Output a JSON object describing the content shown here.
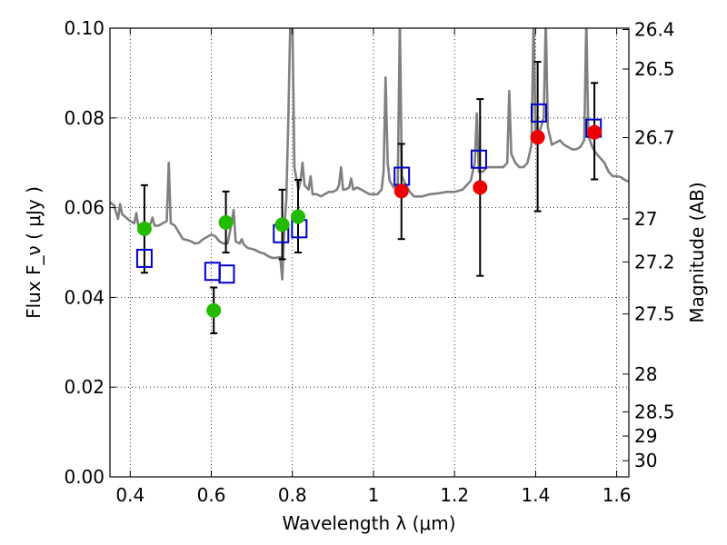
{
  "chart_data": {
    "type": "scatter",
    "xlabel": "Wavelength  λ (μm)",
    "ylabel": "Flux  F_ν  ( μJy )",
    "y2label": "Magnitude (AB)",
    "xlim": [
      0.35,
      1.63
    ],
    "ylim": [
      0.0,
      0.1
    ],
    "grid": true,
    "x_ticks": [
      0.4,
      0.6,
      0.8,
      1.0,
      1.2,
      1.4,
      1.6
    ],
    "x_tick_labels": [
      "0.4",
      "0.6",
      "0.8",
      "1",
      "1.2",
      "1.4",
      "1.6"
    ],
    "y_ticks": [
      0.0,
      0.02,
      0.04,
      0.06,
      0.08,
      0.1
    ],
    "y_tick_labels": [
      "0.00",
      "0.02",
      "0.04",
      "0.06",
      "0.08",
      "0.10"
    ],
    "right_axis_ticks": [
      {
        "flux": 0.0997,
        "label": "26.4"
      },
      {
        "flux": 0.0909,
        "label": "26.5"
      },
      {
        "flux": 0.0756,
        "label": "26.7"
      },
      {
        "flux": 0.0575,
        "label": "27"
      },
      {
        "flux": 0.0479,
        "label": "27.2"
      },
      {
        "flux": 0.0363,
        "label": "27.5"
      },
      {
        "flux": 0.0229,
        "label": "28"
      },
      {
        "flux": 0.0145,
        "label": "28.5"
      },
      {
        "flux": 0.0091,
        "label": "29"
      },
      {
        "flux": 0.0036,
        "label": "30"
      }
    ],
    "series": [
      {
        "kind": "model-spectrum",
        "color": "#808080",
        "points": [
          [
            0.35,
            0.0612
          ],
          [
            0.36,
            0.0605
          ],
          [
            0.37,
            0.0575
          ],
          [
            0.375,
            0.0608
          ],
          [
            0.38,
            0.0585
          ],
          [
            0.39,
            0.0578
          ],
          [
            0.4,
            0.057
          ],
          [
            0.41,
            0.0565
          ],
          [
            0.415,
            0.0588
          ],
          [
            0.42,
            0.056
          ],
          [
            0.43,
            0.0558
          ],
          [
            0.44,
            0.0562
          ],
          [
            0.45,
            0.0564
          ],
          [
            0.455,
            0.0578
          ],
          [
            0.46,
            0.056
          ],
          [
            0.47,
            0.056
          ],
          [
            0.48,
            0.0565
          ],
          [
            0.485,
            0.0568
          ],
          [
            0.49,
            0.057
          ],
          [
            0.495,
            0.07
          ],
          [
            0.5,
            0.0565
          ],
          [
            0.51,
            0.056
          ],
          [
            0.52,
            0.0545
          ],
          [
            0.53,
            0.053
          ],
          [
            0.54,
            0.0528
          ],
          [
            0.55,
            0.0525
          ],
          [
            0.56,
            0.052
          ],
          [
            0.57,
            0.0522
          ],
          [
            0.58,
            0.053
          ],
          [
            0.59,
            0.0535
          ],
          [
            0.6,
            0.054
          ],
          [
            0.61,
            0.0536
          ],
          [
            0.62,
            0.0525
          ],
          [
            0.63,
            0.052
          ],
          [
            0.64,
            0.052
          ],
          [
            0.65,
            0.0565
          ],
          [
            0.655,
            0.0595
          ],
          [
            0.66,
            0.0525
          ],
          [
            0.67,
            0.052
          ],
          [
            0.675,
            0.053
          ],
          [
            0.68,
            0.0518
          ],
          [
            0.69,
            0.051
          ],
          [
            0.7,
            0.0508
          ],
          [
            0.71,
            0.0505
          ],
          [
            0.72,
            0.05
          ],
          [
            0.73,
            0.0498
          ],
          [
            0.74,
            0.0492
          ],
          [
            0.75,
            0.0488
          ],
          [
            0.76,
            0.0488
          ],
          [
            0.77,
            0.049
          ],
          [
            0.775,
            0.044
          ],
          [
            0.78,
            0.055
          ],
          [
            0.785,
            0.062
          ],
          [
            0.79,
            0.08
          ],
          [
            0.795,
            0.102
          ],
          [
            0.8,
            0.102
          ],
          [
            0.805,
            0.069
          ],
          [
            0.81,
            0.0665
          ],
          [
            0.815,
            0.064
          ],
          [
            0.82,
            0.066
          ],
          [
            0.825,
            0.07
          ],
          [
            0.83,
            0.065
          ],
          [
            0.84,
            0.064
          ],
          [
            0.845,
            0.067
          ],
          [
            0.85,
            0.063
          ],
          [
            0.86,
            0.063
          ],
          [
            0.87,
            0.0625
          ],
          [
            0.88,
            0.063
          ],
          [
            0.89,
            0.0635
          ],
          [
            0.9,
            0.0635
          ],
          [
            0.91,
            0.064
          ],
          [
            0.915,
            0.065
          ],
          [
            0.92,
            0.069
          ],
          [
            0.925,
            0.064
          ],
          [
            0.93,
            0.064
          ],
          [
            0.94,
            0.0645
          ],
          [
            0.945,
            0.0665
          ],
          [
            0.95,
            0.064
          ],
          [
            0.96,
            0.0645
          ],
          [
            0.97,
            0.064
          ],
          [
            0.98,
            0.0635
          ],
          [
            0.99,
            0.063
          ],
          [
            1.0,
            0.063
          ],
          [
            1.01,
            0.063
          ],
          [
            1.02,
            0.064
          ],
          [
            1.025,
            0.068
          ],
          [
            1.03,
            0.089
          ],
          [
            1.035,
            0.07
          ],
          [
            1.04,
            0.066
          ],
          [
            1.05,
            0.0645
          ],
          [
            1.06,
            0.065
          ],
          [
            1.065,
            0.102
          ],
          [
            1.07,
            0.067
          ],
          [
            1.08,
            0.065
          ],
          [
            1.09,
            0.0635
          ],
          [
            1.1,
            0.0625
          ],
          [
            1.12,
            0.0625
          ],
          [
            1.14,
            0.063
          ],
          [
            1.16,
            0.0632
          ],
          [
            1.18,
            0.0635
          ],
          [
            1.2,
            0.0635
          ],
          [
            1.22,
            0.064
          ],
          [
            1.24,
            0.066
          ],
          [
            1.25,
            0.07
          ],
          [
            1.255,
            0.081
          ],
          [
            1.26,
            0.068
          ],
          [
            1.27,
            0.068
          ],
          [
            1.28,
            0.069
          ],
          [
            1.3,
            0.069
          ],
          [
            1.32,
            0.069
          ],
          [
            1.33,
            0.07
          ],
          [
            1.335,
            0.086
          ],
          [
            1.34,
            0.072
          ],
          [
            1.35,
            0.07
          ],
          [
            1.36,
            0.069
          ],
          [
            1.37,
            0.069
          ],
          [
            1.38,
            0.07
          ],
          [
            1.39,
            0.074
          ],
          [
            1.395,
            0.102
          ],
          [
            1.4,
            0.076
          ],
          [
            1.41,
            0.077
          ],
          [
            1.42,
            0.08
          ],
          [
            1.425,
            0.102
          ],
          [
            1.43,
            0.078
          ],
          [
            1.44,
            0.074
          ],
          [
            1.45,
            0.0745
          ],
          [
            1.46,
            0.075
          ],
          [
            1.47,
            0.074
          ],
          [
            1.48,
            0.0735
          ],
          [
            1.49,
            0.073
          ],
          [
            1.5,
            0.073
          ],
          [
            1.51,
            0.0735
          ],
          [
            1.52,
            0.075
          ],
          [
            1.525,
            0.102
          ],
          [
            1.53,
            0.076
          ],
          [
            1.54,
            0.0735
          ],
          [
            1.55,
            0.072
          ],
          [
            1.56,
            0.071
          ],
          [
            1.57,
            0.07
          ],
          [
            1.58,
            0.068
          ],
          [
            1.59,
            0.067
          ],
          [
            1.6,
            0.067
          ],
          [
            1.61,
            0.0668
          ],
          [
            1.62,
            0.0662
          ],
          [
            1.63,
            0.0658
          ]
        ]
      },
      {
        "kind": "observed-green",
        "color": "#22bb00",
        "points": [
          {
            "x": 0.435,
            "y": 0.0553,
            "yerr_lo": 0.0455,
            "yerr_hi": 0.065
          },
          {
            "x": 0.606,
            "y": 0.0371,
            "yerr_lo": 0.032,
            "yerr_hi": 0.0422
          },
          {
            "x": 0.636,
            "y": 0.0567,
            "yerr_lo": 0.05,
            "yerr_hi": 0.0636
          },
          {
            "x": 0.775,
            "y": 0.0562,
            "yerr_lo": 0.0485,
            "yerr_hi": 0.064
          },
          {
            "x": 0.814,
            "y": 0.058,
            "yerr_lo": 0.05,
            "yerr_hi": 0.0662
          }
        ]
      },
      {
        "kind": "observed-red",
        "color": "#ee0000",
        "points": [
          {
            "x": 1.069,
            "y": 0.0637,
            "yerr_lo": 0.053,
            "yerr_hi": 0.0742
          },
          {
            "x": 1.263,
            "y": 0.0645,
            "yerr_lo": 0.0448,
            "yerr_hi": 0.0842
          },
          {
            "x": 1.405,
            "y": 0.0757,
            "yerr_lo": 0.0592,
            "yerr_hi": 0.0925
          },
          {
            "x": 1.545,
            "y": 0.0768,
            "yerr_lo": 0.0663,
            "yerr_hi": 0.0878
          }
        ]
      },
      {
        "kind": "model-photometry",
        "color": "#0000cc",
        "points": [
          {
            "x": 0.435,
            "y": 0.0487
          },
          {
            "x": 0.603,
            "y": 0.0458
          },
          {
            "x": 0.638,
            "y": 0.0452
          },
          {
            "x": 0.772,
            "y": 0.0542
          },
          {
            "x": 0.817,
            "y": 0.0553
          },
          {
            "x": 1.07,
            "y": 0.067
          },
          {
            "x": 1.26,
            "y": 0.0708
          },
          {
            "x": 1.408,
            "y": 0.0811
          },
          {
            "x": 1.543,
            "y": 0.0777
          }
        ]
      }
    ]
  }
}
